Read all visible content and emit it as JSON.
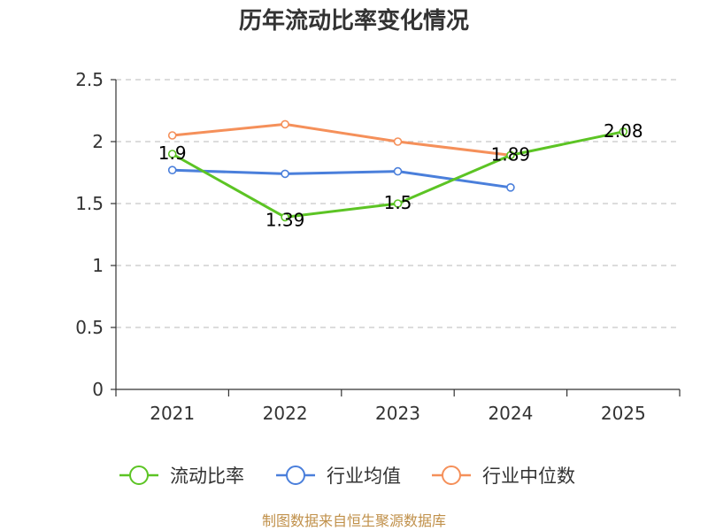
{
  "title": "历年流动比率变化情况",
  "source": "制图数据来自恒生聚源数据库",
  "colors": {
    "axis": "#333333",
    "grid": "#c8c8c8",
    "series": [
      "#5cc424",
      "#4a7fdb",
      "#f5905a"
    ]
  },
  "chart_data": {
    "type": "line",
    "title": "历年流动比率变化情况",
    "xlabel": "",
    "ylabel": "",
    "categories": [
      "2021",
      "2022",
      "2023",
      "2024",
      "2025"
    ],
    "ylim": [
      0,
      2.5
    ],
    "yticks": [
      "0",
      "0.5",
      "1",
      "1.5",
      "2",
      "2.5"
    ],
    "grid": true,
    "legend_position": "bottom",
    "series": [
      {
        "name": "流动比率",
        "values": [
          1.9,
          1.39,
          1.5,
          1.89,
          2.08
        ],
        "labels": [
          "1.9",
          "1.39",
          "1.5",
          "1.89",
          "2.08"
        ]
      },
      {
        "name": "行业均值",
        "values": [
          1.77,
          1.74,
          1.76,
          1.63,
          null
        ]
      },
      {
        "name": "行业中位数",
        "values": [
          2.05,
          2.14,
          2.0,
          1.89,
          null
        ]
      }
    ]
  }
}
